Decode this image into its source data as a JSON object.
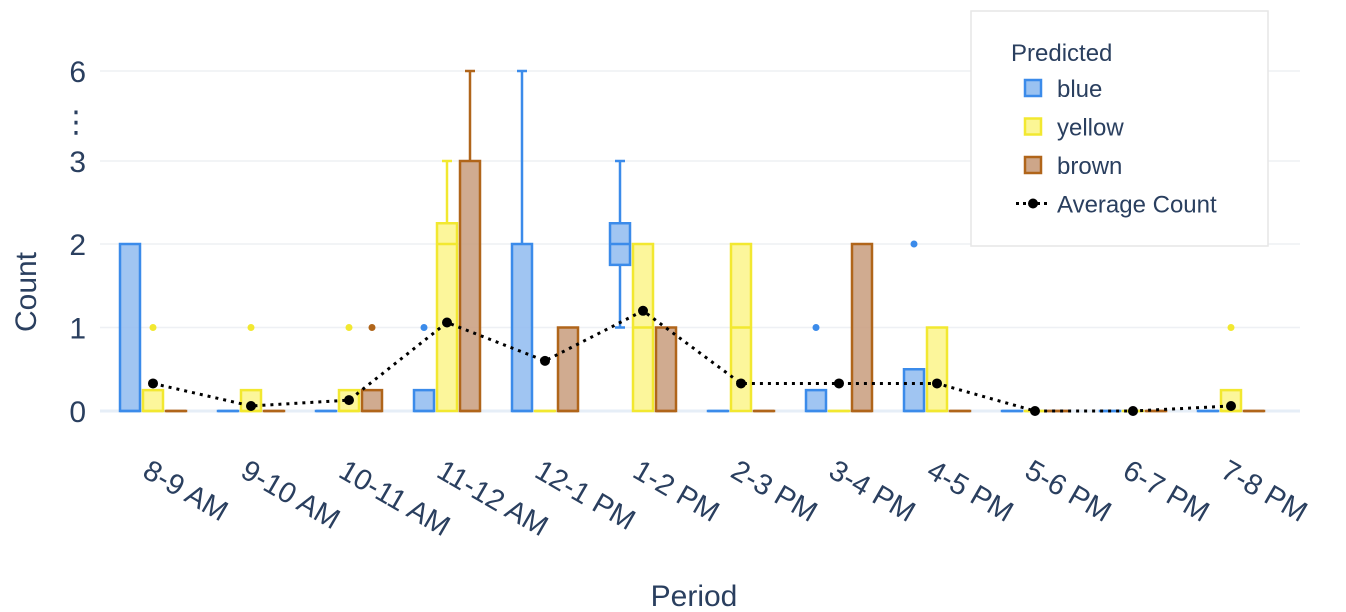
{
  "chart_data": {
    "type": "box",
    "xlabel": "Period",
    "ylabel": "Count",
    "y_scale": "broken",
    "y_ticks": [
      "0",
      "1",
      "2",
      "3",
      "6"
    ],
    "y_break_marker": "⋮",
    "categories": [
      "8-9 AM",
      "9-10 AM",
      "10-11 AM",
      "11-12 AM",
      "12-1 PM",
      "1-2 PM",
      "2-3 PM",
      "3-4 PM",
      "4-5 PM",
      "5-6 PM",
      "6-7 PM",
      "7-8 PM"
    ],
    "legend": {
      "title": "Predicted",
      "position": "top-right"
    },
    "grid": true,
    "series": [
      {
        "name": "blue",
        "color": "#3b8bea",
        "fill": "#8fbbf0",
        "boxes": [
          {
            "q1": 0,
            "median": 0,
            "q3": 2,
            "whisker_low": 0,
            "whisker_high": 2,
            "outliers": []
          },
          {
            "q1": 0,
            "median": 0,
            "q3": 0,
            "whisker_low": 0,
            "whisker_high": 0,
            "outliers": []
          },
          {
            "q1": 0,
            "median": 0,
            "q3": 0,
            "whisker_low": 0,
            "whisker_high": 0,
            "outliers": []
          },
          {
            "q1": 0,
            "median": 0,
            "q3": 0.25,
            "whisker_low": 0,
            "whisker_high": 0.25,
            "outliers": [
              1
            ]
          },
          {
            "q1": 0,
            "median": 0,
            "q3": 2,
            "whisker_low": 0,
            "whisker_high": 6,
            "outliers": []
          },
          {
            "q1": 1.75,
            "median": 2,
            "q3": 2.25,
            "whisker_low": 1,
            "whisker_high": 3,
            "outliers": []
          },
          {
            "q1": 0,
            "median": 0,
            "q3": 0,
            "whisker_low": 0,
            "whisker_high": 0,
            "outliers": []
          },
          {
            "q1": 0,
            "median": 0,
            "q3": 0.25,
            "whisker_low": 0,
            "whisker_high": 0.25,
            "outliers": [
              1
            ]
          },
          {
            "q1": 0,
            "median": 0,
            "q3": 0.5,
            "whisker_low": 0,
            "whisker_high": 0.5,
            "outliers": [
              2
            ]
          },
          {
            "q1": 0,
            "median": 0,
            "q3": 0,
            "whisker_low": 0,
            "whisker_high": 0,
            "outliers": []
          },
          {
            "q1": 0,
            "median": 0,
            "q3": 0,
            "whisker_low": 0,
            "whisker_high": 0,
            "outliers": []
          },
          {
            "q1": 0,
            "median": 0,
            "q3": 0,
            "whisker_low": 0,
            "whisker_high": 0,
            "outliers": []
          }
        ]
      },
      {
        "name": "yellow",
        "color": "#f2e830",
        "fill": "#fbf58a",
        "boxes": [
          {
            "q1": 0,
            "median": 0,
            "q3": 0.25,
            "whisker_low": 0,
            "whisker_high": 0.25,
            "outliers": [
              1
            ]
          },
          {
            "q1": 0,
            "median": 0,
            "q3": 0.25,
            "whisker_low": 0,
            "whisker_high": 0.25,
            "outliers": [
              1
            ]
          },
          {
            "q1": 0,
            "median": 0,
            "q3": 0.25,
            "whisker_low": 0,
            "whisker_high": 0.25,
            "outliers": [
              1
            ]
          },
          {
            "q1": 0,
            "median": 2,
            "q3": 2.25,
            "whisker_low": 0,
            "whisker_high": 3,
            "outliers": []
          },
          {
            "q1": 0,
            "median": 0,
            "q3": 0,
            "whisker_low": 0,
            "whisker_high": 0,
            "outliers": []
          },
          {
            "q1": 0,
            "median": 1,
            "q3": 2,
            "whisker_low": 0,
            "whisker_high": 2,
            "outliers": []
          },
          {
            "q1": 0,
            "median": 1,
            "q3": 2,
            "whisker_low": 0,
            "whisker_high": 2,
            "outliers": []
          },
          {
            "q1": 0,
            "median": 0,
            "q3": 0,
            "whisker_low": 0,
            "whisker_high": 0,
            "outliers": []
          },
          {
            "q1": 0,
            "median": 0,
            "q3": 1,
            "whisker_low": 0,
            "whisker_high": 1,
            "outliers": []
          },
          {
            "q1": 0,
            "median": 0,
            "q3": 0,
            "whisker_low": 0,
            "whisker_high": 0,
            "outliers": []
          },
          {
            "q1": 0,
            "median": 0,
            "q3": 0,
            "whisker_low": 0,
            "whisker_high": 0,
            "outliers": []
          },
          {
            "q1": 0,
            "median": 0,
            "q3": 0.25,
            "whisker_low": 0,
            "whisker_high": 0.25,
            "outliers": [
              1
            ]
          }
        ]
      },
      {
        "name": "brown",
        "color": "#b0651a",
        "fill": "#c89c7c",
        "boxes": [
          {
            "q1": 0,
            "median": 0,
            "q3": 0,
            "whisker_low": 0,
            "whisker_high": 0,
            "outliers": []
          },
          {
            "q1": 0,
            "median": 0,
            "q3": 0,
            "whisker_low": 0,
            "whisker_high": 0,
            "outliers": []
          },
          {
            "q1": 0,
            "median": 0,
            "q3": 0.25,
            "whisker_low": 0,
            "whisker_high": 0.25,
            "outliers": [
              1
            ]
          },
          {
            "q1": 0,
            "median": 0,
            "q3": 3,
            "whisker_low": 0,
            "whisker_high": 6,
            "outliers": []
          },
          {
            "q1": 0,
            "median": 0,
            "q3": 1,
            "whisker_low": 0,
            "whisker_high": 1,
            "outliers": []
          },
          {
            "q1": 0,
            "median": 0,
            "q3": 1,
            "whisker_low": 0,
            "whisker_high": 1,
            "outliers": []
          },
          {
            "q1": 0,
            "median": 0,
            "q3": 0,
            "whisker_low": 0,
            "whisker_high": 0,
            "outliers": []
          },
          {
            "q1": 0,
            "median": 0,
            "q3": 2,
            "whisker_low": 0,
            "whisker_high": 2,
            "outliers": []
          },
          {
            "q1": 0,
            "median": 0,
            "q3": 0,
            "whisker_low": 0,
            "whisker_high": 0,
            "outliers": []
          },
          {
            "q1": 0,
            "median": 0,
            "q3": 0,
            "whisker_low": 0,
            "whisker_high": 0,
            "outliers": []
          },
          {
            "q1": 0,
            "median": 0,
            "q3": 0,
            "whisker_low": 0,
            "whisker_high": 0,
            "outliers": []
          },
          {
            "q1": 0,
            "median": 0,
            "q3": 0,
            "whisker_low": 0,
            "whisker_high": 0,
            "outliers": []
          }
        ]
      }
    ],
    "line": {
      "name": "Average Count",
      "color": "#000000",
      "style": "dotted",
      "values": [
        0.33,
        0.06,
        0.13,
        1.06,
        0.6,
        1.2,
        0.33,
        0.33,
        0.33,
        0.0,
        0.0,
        0.06
      ]
    }
  }
}
